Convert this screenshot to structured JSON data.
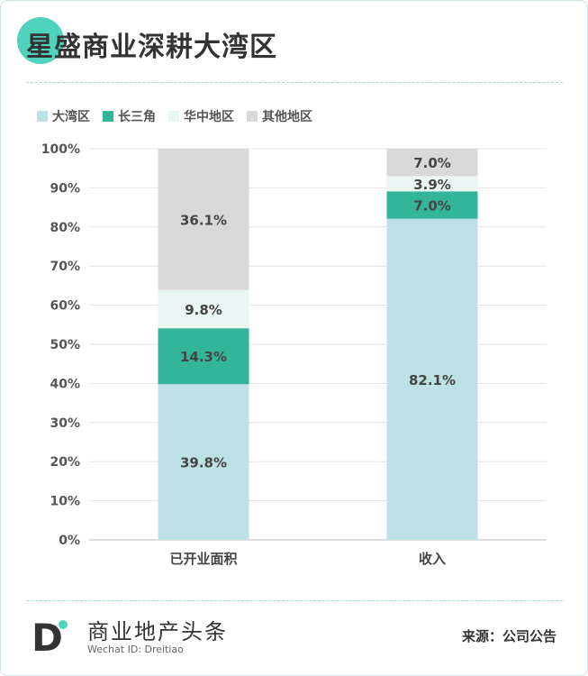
{
  "title": "星盛商业深耕大湾区",
  "colors": {
    "大湾区": "#bde1e4",
    "长三角": "#33b59a",
    "华中地区": "#e9f6f4",
    "其他地区": "#d9d9d9"
  },
  "chart_data": {
    "type": "bar",
    "stacked": true,
    "categories": [
      "已开业面积",
      "收入"
    ],
    "series": [
      {
        "name": "大湾区",
        "values": [
          39.8,
          82.1
        ],
        "labels": [
          "39.8%",
          "82.1%"
        ]
      },
      {
        "name": "长三角",
        "values": [
          14.3,
          7.0
        ],
        "labels": [
          "14.3%",
          "7.0%"
        ]
      },
      {
        "name": "华中地区",
        "values": [
          9.8,
          3.9
        ],
        "labels": [
          "9.8%",
          "3.9%"
        ]
      },
      {
        "name": "其他地区",
        "values": [
          36.1,
          7.0
        ],
        "labels": [
          "36.1%",
          "7.0%"
        ]
      }
    ],
    "ylim": [
      0,
      100
    ],
    "yticks": [
      "0%",
      "10%",
      "20%",
      "30%",
      "40%",
      "50%",
      "60%",
      "70%",
      "80%",
      "90%",
      "100%"
    ],
    "legend_position": "top-left",
    "grid": true
  },
  "footer": {
    "brand_cn": "商业地产头条",
    "brand_en": "Wechat ID: Dreitiao",
    "logo_letter": "D",
    "source": "来源：公司公告"
  }
}
